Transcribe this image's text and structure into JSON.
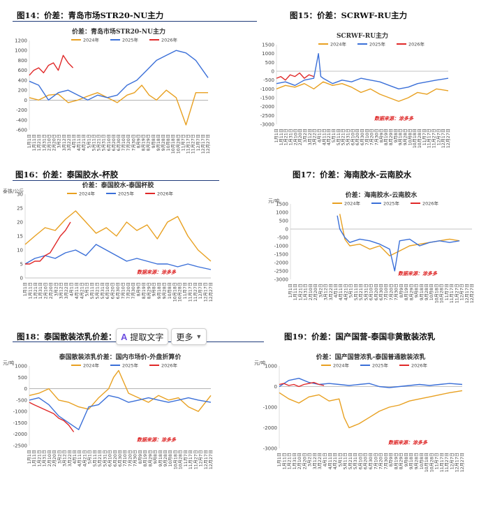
{
  "headings": [
    {
      "label": "图14：价差：青岛市场STR20-NU主力"
    },
    {
      "label": "图15：价差：SCRWF-RU主力"
    },
    {
      "label": "图16：价差：泰国胶水-杯胶"
    },
    {
      "label": "图17：价差：海南胶水-云南胶水"
    },
    {
      "label": "图18：泰国散装浓乳价差："
    },
    {
      "label": "图19：价差：国产国营-泰国非黄散装浓乳"
    }
  ],
  "toolbar": {
    "extract_label": "提取文字",
    "more_label": "更多",
    "extract_icon": "text-extract-icon",
    "more_icon": "chevron-down-icon"
  },
  "colors": {
    "y2024": "#e8a020",
    "y2025": "#3a6fd8",
    "y2026": "#e02828"
  },
  "chart_data": [
    {
      "type": "line",
      "title": "价差：青岛市场STR20-NU主力",
      "ylabel": "",
      "ylim": [
        -600,
        1200
      ],
      "yticks": [
        1200,
        1000,
        800,
        600,
        400,
        200,
        0,
        -200,
        -400,
        -600
      ],
      "xticks": [
        "1月1日",
        "1月11日",
        "1月21日",
        "1月31日",
        "2月10日",
        "2月20日",
        "3月2日",
        "3月12日",
        "3月22日",
        "4月1日",
        "4月11日",
        "4月21日",
        "5月1日",
        "5月11日",
        "5月21日",
        "5月31日",
        "6月10日",
        "6月20日",
        "6月30日",
        "7月10日",
        "7月20日",
        "7月30日",
        "8月9日",
        "8月19日",
        "8月29日",
        "9月8日",
        "9月18日",
        "9月28日",
        "10月8日",
        "10月18日",
        "10月28日",
        "11月7日",
        "11月17日",
        "11月27日",
        "12月7日",
        "12月17日",
        "12月27日"
      ],
      "legend": [
        "2024年",
        "2025年",
        "2026年"
      ],
      "source": "",
      "series": [
        {
          "name": "2024年",
          "days": [
            1,
            20,
            40,
            60,
            80,
            100,
            120,
            140,
            160,
            180,
            200,
            215,
            230,
            245,
            260,
            280,
            300,
            320,
            340,
            365
          ],
          "values": [
            50,
            0,
            100,
            120,
            -50,
            0,
            80,
            150,
            50,
            -50,
            100,
            150,
            300,
            100,
            0,
            200,
            50,
            -500,
            150,
            150
          ]
        },
        {
          "name": "2025年",
          "days": [
            1,
            20,
            40,
            60,
            80,
            100,
            120,
            140,
            160,
            180,
            200,
            220,
            240,
            260,
            280,
            300,
            320,
            340,
            365
          ],
          "values": [
            380,
            300,
            0,
            150,
            200,
            100,
            0,
            100,
            50,
            100,
            300,
            400,
            600,
            800,
            900,
            1000,
            950,
            800,
            450
          ]
        },
        {
          "name": "2026年",
          "days": [
            1,
            10,
            20,
            30,
            40,
            50,
            60,
            70,
            80,
            90
          ],
          "values": [
            500,
            600,
            650,
            550,
            700,
            750,
            600,
            900,
            750,
            650
          ]
        }
      ]
    },
    {
      "type": "line",
      "title": "SCRWF-RU主力",
      "ylabel": "",
      "ylim": [
        -3000,
        1500
      ],
      "yticks": [
        1500,
        1000,
        500,
        0,
        -500,
        -1000,
        -1500,
        -2000,
        -2500,
        -3000
      ],
      "xticks": [
        "1月1日",
        "1月11日",
        "1月21日",
        "1月31日",
        "2月10日",
        "2月20日",
        "3月2日",
        "3月12日",
        "3月22日",
        "4月1日",
        "4月11日",
        "4月21日",
        "5月1日",
        "5月11日",
        "5月21日",
        "5月31日",
        "6月10日",
        "6月20日",
        "6月30日",
        "7月10日",
        "7月20日",
        "7月30日",
        "8月9日",
        "8月19日",
        "8月29日",
        "9月8日",
        "9月18日",
        "9月28日",
        "10月8日",
        "10月18日",
        "10月28日",
        "11月7日",
        "11月17日",
        "11月27日",
        "12月7日",
        "12月17日",
        "12月27日"
      ],
      "legend": [
        "2024年",
        "2025年",
        "2026年"
      ],
      "source": "数据来源：涂多多",
      "series": [
        {
          "name": "2024年",
          "days": [
            1,
            20,
            40,
            60,
            80,
            100,
            120,
            140,
            160,
            180,
            200,
            220,
            240,
            260,
            280,
            300,
            320,
            340,
            365
          ],
          "values": [
            -1000,
            -800,
            -900,
            -700,
            -1000,
            -600,
            -800,
            -700,
            -900,
            -1200,
            -1000,
            -1300,
            -1500,
            -1700,
            -1500,
            -1200,
            -1300,
            -1000,
            -1100
          ]
        },
        {
          "name": "2025年",
          "days": [
            1,
            20,
            40,
            60,
            80,
            90,
            95,
            100,
            120,
            140,
            160,
            180,
            200,
            220,
            240,
            260,
            280,
            300,
            320,
            340,
            365
          ],
          "values": [
            -700,
            -600,
            -800,
            -500,
            -400,
            1000,
            -300,
            -400,
            -700,
            -500,
            -600,
            -400,
            -500,
            -600,
            -800,
            -1000,
            -900,
            -700,
            -600,
            -500,
            -400
          ]
        },
        {
          "name": "2026年",
          "days": [
            1,
            10,
            20,
            30,
            40,
            50,
            60,
            70,
            80
          ],
          "values": [
            -400,
            -300,
            -500,
            -200,
            -300,
            -100,
            -400,
            -200,
            -300
          ]
        }
      ]
    },
    {
      "type": "line",
      "title": "价差：泰国胶水-泰国杯胶",
      "ylabel": "泰铢/公斤",
      "ylim": [
        0,
        30
      ],
      "yticks": [
        30,
        25,
        20,
        15,
        10,
        5,
        0
      ],
      "xticks": [
        "1月1日",
        "1月11日",
        "1月21日",
        "1月31日",
        "2月10日",
        "2月20日",
        "3月2日",
        "3月12日",
        "3月22日",
        "4月1日",
        "4月11日",
        "4月21日",
        "5月1日",
        "5月11日",
        "5月21日",
        "5月31日",
        "6月10日",
        "6月20日",
        "6月30日",
        "7月10日",
        "7月20日",
        "7月30日",
        "8月9日",
        "8月19日",
        "8月29日",
        "9月8日",
        "9月18日",
        "9月28日",
        "10月8日",
        "10月18日",
        "10月28日",
        "11月7日",
        "11月17日",
        "11月27日",
        "12月7日",
        "12月17日",
        "12月27日"
      ],
      "legend": [
        "2024年",
        "2025年",
        "2026年"
      ],
      "source": "数据来源：涂多多",
      "series": [
        {
          "name": "2024年",
          "days": [
            1,
            20,
            40,
            60,
            80,
            100,
            120,
            140,
            160,
            180,
            200,
            220,
            240,
            260,
            280,
            300,
            320,
            340,
            365
          ],
          "values": [
            12,
            15,
            18,
            17,
            21,
            24,
            20,
            16,
            18,
            15,
            20,
            17,
            19,
            14,
            20,
            22,
            15,
            10,
            6
          ]
        },
        {
          "name": "2025年",
          "days": [
            1,
            20,
            40,
            60,
            80,
            100,
            120,
            140,
            160,
            180,
            200,
            220,
            240,
            260,
            280,
            300,
            320,
            340,
            365
          ],
          "values": [
            5,
            7,
            8,
            7,
            9,
            10,
            8,
            12,
            10,
            8,
            6,
            7,
            6,
            5,
            5,
            4,
            5,
            4,
            3
          ]
        },
        {
          "name": "2026年",
          "days": [
            1,
            10,
            20,
            30,
            40,
            50,
            60,
            70,
            80,
            90
          ],
          "values": [
            5,
            5,
            6,
            6,
            8,
            9,
            12,
            15,
            17,
            20
          ]
        }
      ]
    },
    {
      "type": "line",
      "title": "价差：海南胶水-云南胶水",
      "ylabel": "元/吨",
      "ylim": [
        -3000,
        1500
      ],
      "yticks": [
        1500,
        1000,
        500,
        0,
        -500,
        -1000,
        -1500,
        -2000,
        -2500,
        -3000
      ],
      "xticks": [
        "1月1日",
        "1月11日",
        "1月21日",
        "1月31日",
        "2月10日",
        "2月20日",
        "3月2日",
        "3月12日",
        "3月22日",
        "4月1日",
        "4月11日",
        "4月21日",
        "5月1日",
        "5月11日",
        "5月21日",
        "5月31日",
        "6月10日",
        "6月20日",
        "6月30日",
        "7月10日",
        "7月20日",
        "7月30日",
        "8月9日",
        "8月19日",
        "8月29日",
        "9月8日",
        "9月18日",
        "9月28日",
        "10月8日",
        "10月18日",
        "10月28日",
        "11月7日",
        "11月17日",
        "11月27日",
        "12月7日",
        "12月17日",
        "12月27日"
      ],
      "legend": [
        "2024年",
        "2025年",
        "2026年"
      ],
      "source": "数据来源：涂多多",
      "series": [
        {
          "name": "2024年",
          "days": [
            100,
            110,
            120,
            140,
            160,
            180,
            200,
            220,
            240,
            260,
            280,
            300,
            320,
            340
          ],
          "values": [
            900,
            -600,
            -1000,
            -900,
            -1200,
            -1000,
            -1600,
            -1300,
            -1000,
            -900,
            -800,
            -700,
            -600,
            -700
          ]
        },
        {
          "name": "2025年",
          "days": [
            95,
            100,
            110,
            120,
            140,
            160,
            180,
            200,
            210,
            220,
            240,
            260,
            280,
            300,
            320,
            340
          ],
          "values": [
            800,
            0,
            -500,
            -800,
            -600,
            -700,
            -900,
            -1200,
            -2500,
            -700,
            -600,
            -1000,
            -800,
            -700,
            -800,
            -700
          ]
        }
      ]
    },
    {
      "type": "line",
      "title": "泰国散装浓乳价差：国内市场价-外盘折算价",
      "ylabel": "元/吨",
      "ylim": [
        -2500,
        1000
      ],
      "yticks": [
        1000,
        500,
        0,
        -500,
        -1000,
        -1500,
        -2000,
        -2500
      ],
      "xticks": [
        "1月1日",
        "1月11日",
        "1月21日",
        "1月31日",
        "2月10日",
        "2月20日",
        "3月2日",
        "3月12日",
        "3月22日",
        "4月1日",
        "4月11日",
        "4月21日",
        "5月1日",
        "5月11日",
        "5月21日",
        "5月31日",
        "6月10日",
        "6月20日",
        "6月30日",
        "7月10日",
        "7月20日",
        "7月30日",
        "8月9日",
        "8月19日",
        "8月29日",
        "9月8日",
        "9月18日",
        "9月28日",
        "10月8日",
        "10月18日",
        "10月28日",
        "11月7日",
        "11月17日",
        "11月27日",
        "12月7日",
        "12月17日",
        "12月27日"
      ],
      "legend": [
        "2024年",
        "2025年",
        "2026年"
      ],
      "source": "数据来源：涂多多",
      "series": [
        {
          "name": "2024年",
          "days": [
            1,
            20,
            40,
            60,
            80,
            100,
            120,
            140,
            160,
            170,
            180,
            200,
            220,
            240,
            260,
            280,
            300,
            320,
            340,
            365
          ],
          "values": [
            -300,
            -200,
            0,
            -500,
            -600,
            -800,
            -900,
            -400,
            0,
            500,
            800,
            -200,
            -400,
            -600,
            -300,
            -500,
            -400,
            -800,
            -1000,
            -300
          ]
        },
        {
          "name": "2025年",
          "days": [
            1,
            20,
            40,
            60,
            80,
            100,
            120,
            140,
            160,
            180,
            200,
            220,
            240,
            260,
            280,
            300,
            320,
            340,
            365
          ],
          "values": [
            -500,
            -400,
            -700,
            -1200,
            -1500,
            -1800,
            -800,
            -700,
            -300,
            -400,
            -600,
            -500,
            -400,
            -500,
            -600,
            -500,
            -400,
            -500,
            -600
          ]
        },
        {
          "name": "2026年",
          "days": [
            1,
            10,
            20,
            30,
            40,
            50,
            60,
            70,
            80,
            90
          ],
          "values": [
            -600,
            -700,
            -800,
            -900,
            -1000,
            -1100,
            -1300,
            -1400,
            -1600,
            -1900
          ]
        }
      ]
    },
    {
      "type": "line",
      "title": "价差：国产国营浓乳-泰国普通散装浓乳",
      "ylabel": "元/吨",
      "ylim": [
        -3000,
        1000
      ],
      "yticks": [
        1000,
        0,
        -1000,
        -2000,
        -3000
      ],
      "xticks": [
        "1月1日",
        "1月11日",
        "1月21日",
        "1月31日",
        "2月10日",
        "2月20日",
        "3月2日",
        "3月12日",
        "3月22日",
        "4月1日",
        "4月11日",
        "4月21日",
        "5月1日",
        "5月11日",
        "5月21日",
        "5月31日",
        "6月10日",
        "6月20日",
        "6月30日",
        "7月10日",
        "7月20日",
        "7月30日",
        "8月9日",
        "8月19日",
        "8月29日",
        "9月8日",
        "9月18日",
        "9月28日",
        "10月8日",
        "10月18日",
        "10月28日",
        "11月7日",
        "11月17日",
        "11月27日",
        "12月7日",
        "12月17日",
        "12月27日"
      ],
      "legend": [
        "2024年",
        "2025年",
        "2026年"
      ],
      "source": "数据来源：涂多多",
      "series": [
        {
          "name": "2024年",
          "days": [
            1,
            20,
            40,
            60,
            80,
            100,
            120,
            130,
            140,
            160,
            180,
            200,
            220,
            240,
            260,
            280,
            300,
            320,
            340,
            365
          ],
          "values": [
            -300,
            -600,
            -800,
            -500,
            -400,
            -700,
            -600,
            -1500,
            -2000,
            -1800,
            -1500,
            -1200,
            -1000,
            -900,
            -700,
            -600,
            -500,
            -400,
            -300,
            -200
          ]
        },
        {
          "name": "2025年",
          "days": [
            1,
            20,
            40,
            60,
            80,
            100,
            120,
            140,
            160,
            180,
            200,
            220,
            240,
            260,
            280,
            300,
            320,
            340,
            365
          ],
          "values": [
            0,
            300,
            400,
            200,
            100,
            150,
            100,
            50,
            100,
            150,
            0,
            -50,
            0,
            50,
            100,
            50,
            100,
            150,
            100
          ]
        },
        {
          "name": "2026年",
          "days": [
            1,
            10,
            20,
            30,
            40,
            50,
            60,
            70,
            80,
            90
          ],
          "values": [
            100,
            150,
            50,
            100,
            0,
            100,
            150,
            200,
            100,
            50
          ]
        }
      ]
    }
  ]
}
